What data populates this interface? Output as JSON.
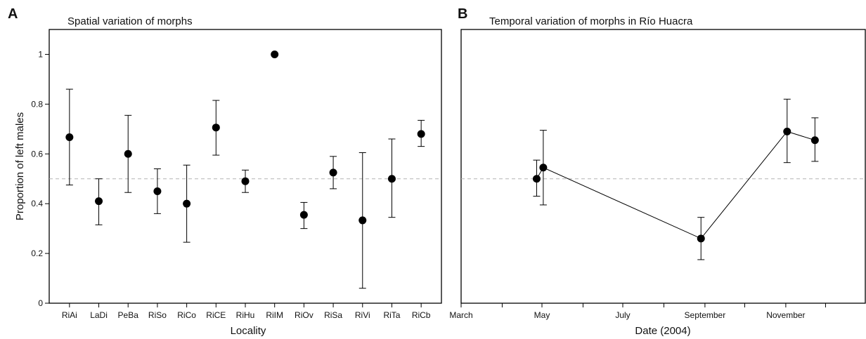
{
  "chart_data": [
    {
      "type": "scatter",
      "panel": "A",
      "title": "Spatial variation of morphs",
      "xlabel": "Locality",
      "ylabel": "Proportion of left males",
      "ylim": [
        0,
        1.1
      ],
      "yticks": [
        0,
        0.2,
        0.4,
        0.6,
        0.8,
        1
      ],
      "reference_line": 0.5,
      "grid": false,
      "categories": [
        "RiAi",
        "LaDi",
        "PeBa",
        "RiSo",
        "RiCo",
        "RiCE",
        "RiHu",
        "RiIM",
        "RiOv",
        "RiSa",
        "RiVi",
        "RiTa",
        "RiCb"
      ],
      "values": [
        0.667,
        0.41,
        0.6,
        0.45,
        0.4,
        0.706,
        0.49,
        1.0,
        0.355,
        0.525,
        0.333,
        0.5,
        0.68
      ],
      "error_low": [
        0.475,
        0.315,
        0.445,
        0.36,
        0.245,
        0.595,
        0.445,
        null,
        0.3,
        0.46,
        0.06,
        0.345,
        0.63
      ],
      "error_high": [
        0.86,
        0.5,
        0.755,
        0.54,
        0.555,
        0.815,
        0.535,
        null,
        0.405,
        0.59,
        0.605,
        0.66,
        0.735
      ]
    },
    {
      "type": "line",
      "panel": "B",
      "title": "Temporal variation of morphs in Río Huacra",
      "xlabel": "Date (2004)",
      "ylim": [
        0,
        1.1
      ],
      "reference_line": 0.5,
      "grid": false,
      "x_range": [
        "2004-03-01",
        "2004-12-31"
      ],
      "xtick_marks": [
        "2004-03-01",
        "2004-04-01",
        "2004-05-01",
        "2004-06-01",
        "2004-07-01",
        "2004-08-01",
        "2004-09-01",
        "2004-10-01",
        "2004-11-01",
        "2004-12-01"
      ],
      "xtick_labels": [
        {
          "date": "2004-03-01",
          "label": "March"
        },
        {
          "date": "2004-05-01",
          "label": "May"
        },
        {
          "date": "2004-07-01",
          "label": "July"
        },
        {
          "date": "2004-09-01",
          "label": "September"
        },
        {
          "date": "2004-11-01",
          "label": "November"
        }
      ],
      "x": [
        "2004-04-27",
        "2004-05-02",
        "2004-08-29",
        "2004-11-02",
        "2004-11-23"
      ],
      "values": [
        0.5,
        0.545,
        0.26,
        0.69,
        0.655
      ],
      "error_low": [
        0.43,
        0.395,
        0.175,
        0.565,
        0.57
      ],
      "error_high": [
        0.575,
        0.695,
        0.345,
        0.82,
        0.745
      ]
    }
  ]
}
